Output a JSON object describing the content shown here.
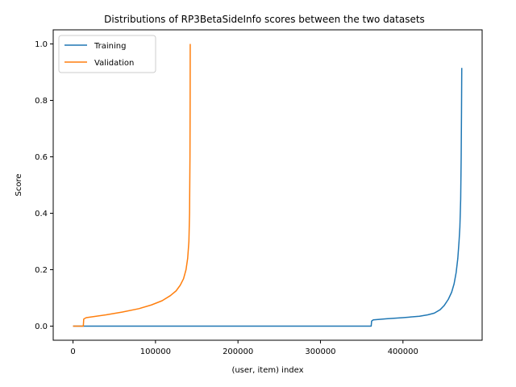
{
  "chart_data": {
    "type": "line",
    "title": "Distributions of RP3BetaSideInfo scores between the two datasets",
    "xlabel": "(user, item) index",
    "ylabel": "Score",
    "xlim": [
      -24000,
      496000
    ],
    "ylim": [
      -0.05,
      1.05
    ],
    "x_ticks": [
      0,
      100000,
      200000,
      300000,
      400000
    ],
    "x_tick_labels": [
      "0",
      "100000",
      "200000",
      "300000",
      "400000"
    ],
    "y_ticks": [
      0.0,
      0.2,
      0.4,
      0.6,
      0.8,
      1.0
    ],
    "y_tick_labels": [
      "0.0",
      "0.2",
      "0.4",
      "0.6",
      "0.8",
      "1.0"
    ],
    "grid": false,
    "legend_position": "upper-left",
    "series": [
      {
        "name": "Training",
        "color": "#1f77b4",
        "points": [
          [
            0,
            0.0
          ],
          [
            360000,
            0.0
          ],
          [
            361500,
            0.0
          ],
          [
            362000,
            0.018
          ],
          [
            364000,
            0.022
          ],
          [
            380000,
            0.026
          ],
          [
            400000,
            0.03
          ],
          [
            420000,
            0.035
          ],
          [
            430000,
            0.04
          ],
          [
            438000,
            0.046
          ],
          [
            445000,
            0.058
          ],
          [
            450000,
            0.073
          ],
          [
            455000,
            0.095
          ],
          [
            459000,
            0.12
          ],
          [
            462000,
            0.15
          ],
          [
            464500,
            0.19
          ],
          [
            466500,
            0.24
          ],
          [
            468000,
            0.3
          ],
          [
            469000,
            0.35
          ],
          [
            470000,
            0.45
          ],
          [
            470600,
            0.6
          ],
          [
            471000,
            0.76
          ],
          [
            471300,
            0.915
          ]
        ]
      },
      {
        "name": "Validation",
        "color": "#ff7f0e",
        "points": [
          [
            0,
            0.0
          ],
          [
            12500,
            0.0
          ],
          [
            13000,
            0.025
          ],
          [
            16000,
            0.03
          ],
          [
            40000,
            0.04
          ],
          [
            60000,
            0.05
          ],
          [
            80000,
            0.062
          ],
          [
            95000,
            0.075
          ],
          [
            108000,
            0.09
          ],
          [
            118000,
            0.108
          ],
          [
            125000,
            0.125
          ],
          [
            130000,
            0.145
          ],
          [
            134000,
            0.168
          ],
          [
            137000,
            0.2
          ],
          [
            139000,
            0.24
          ],
          [
            140500,
            0.3
          ],
          [
            141300,
            0.4
          ],
          [
            141800,
            0.6
          ],
          [
            142000,
            0.8
          ],
          [
            142100,
            1.0
          ]
        ]
      }
    ]
  }
}
